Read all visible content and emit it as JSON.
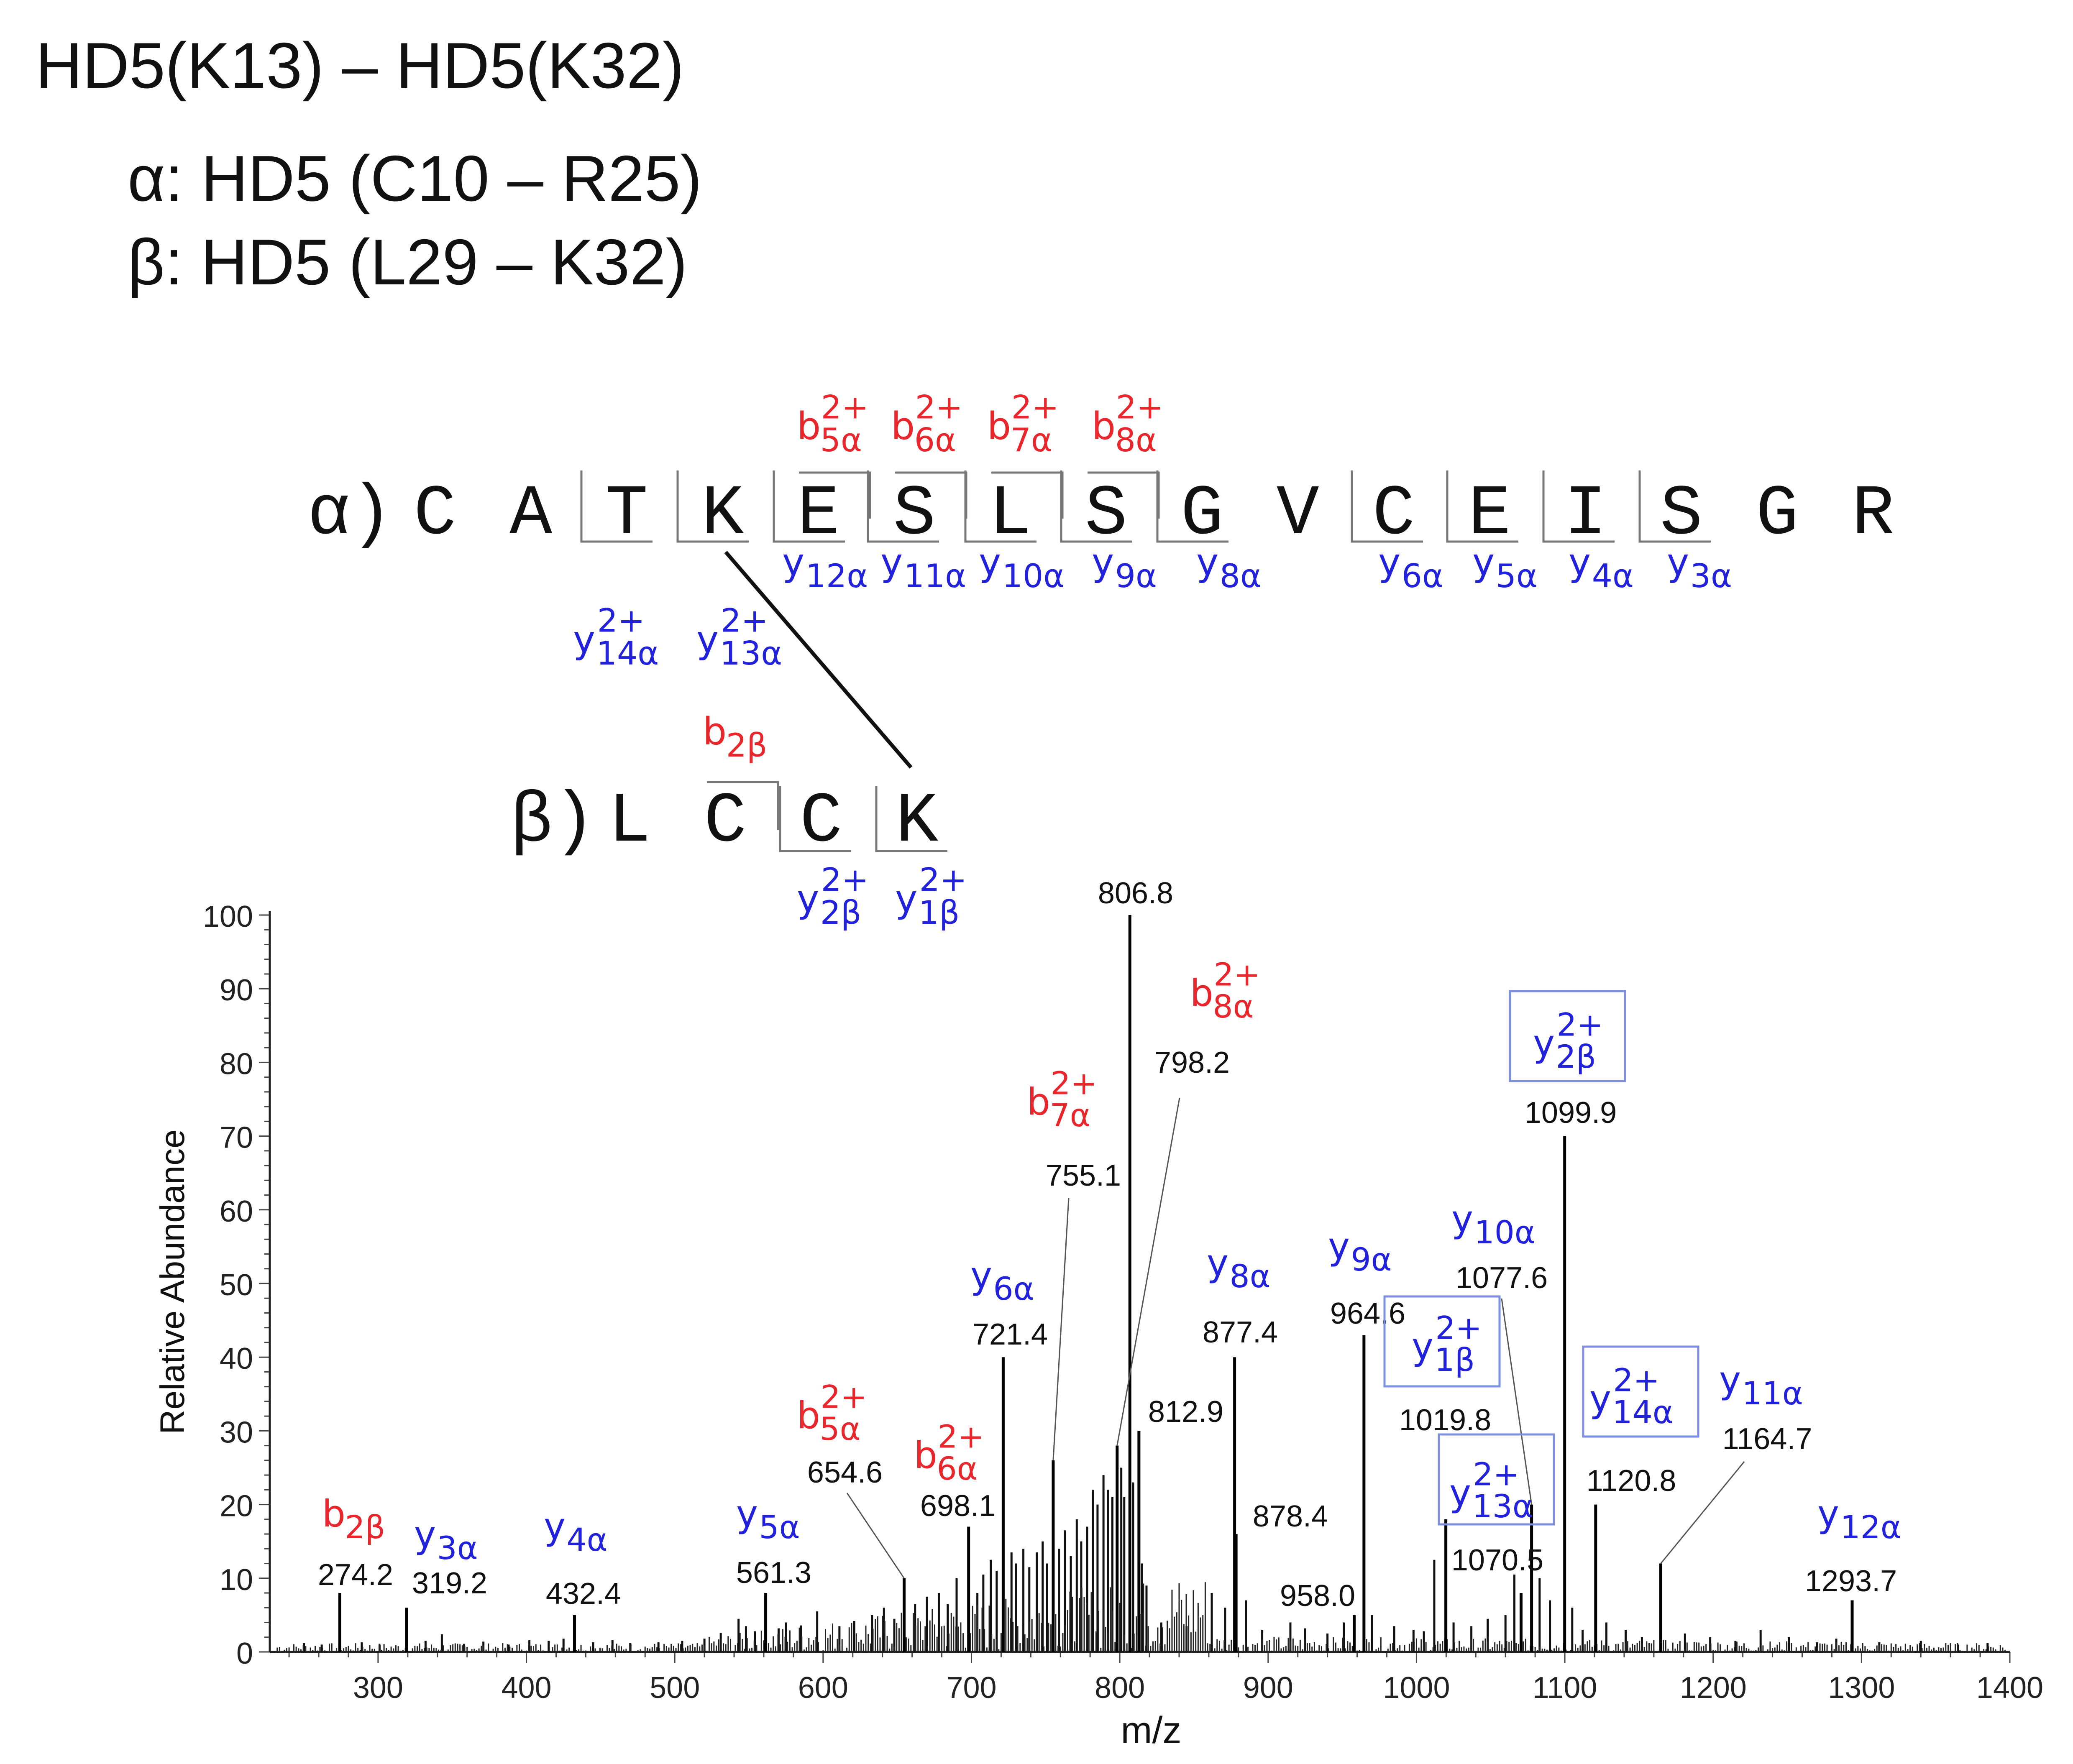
{
  "header": {
    "title": "HD5(K13) – HD5(K32)",
    "alpha_line": "α: HD5 (C10 – R25)",
    "beta_line": "β: HD5 (L29 – K32)"
  },
  "sequence_map": {
    "alpha_prefix": "α)",
    "alpha_residues": [
      "C",
      "A",
      "T",
      "K",
      "E",
      "S",
      "L",
      "S",
      "G",
      "V",
      "C",
      "E",
      "I",
      "S",
      "G",
      "R"
    ],
    "beta_prefix": "β)",
    "beta_residues": [
      "L",
      "C",
      "C",
      "K"
    ],
    "alpha_b_ions": [
      {
        "base": "b",
        "sub": "5α",
        "sup": "2+"
      },
      {
        "base": "b",
        "sub": "6α",
        "sup": "2+"
      },
      {
        "base": "b",
        "sub": "7α",
        "sup": "2+"
      },
      {
        "base": "b",
        "sub": "8α",
        "sup": "2+"
      }
    ],
    "alpha_y_ions": [
      {
        "base": "y",
        "sub": "12α",
        "sup": ""
      },
      {
        "base": "y",
        "sub": "11α",
        "sup": ""
      },
      {
        "base": "y",
        "sub": "10α",
        "sup": ""
      },
      {
        "base": "y",
        "sub": "9α",
        "sup": ""
      },
      {
        "base": "y",
        "sub": "8α",
        "sup": ""
      },
      {
        "base": "y",
        "sub": "6α",
        "sup": ""
      },
      {
        "base": "y",
        "sub": "5α",
        "sup": ""
      },
      {
        "base": "y",
        "sub": "4α",
        "sup": ""
      },
      {
        "base": "y",
        "sub": "3α",
        "sup": ""
      }
    ],
    "crosslink_y_ions": [
      {
        "base": "y",
        "sub": "14α",
        "sup": "2+"
      },
      {
        "base": "y",
        "sub": "13α",
        "sup": "2+"
      }
    ],
    "beta_b_ions": [
      {
        "base": "b",
        "sub": "2β",
        "sup": ""
      }
    ],
    "beta_y_ions": [
      {
        "base": "y",
        "sub": "2β",
        "sup": "2+"
      },
      {
        "base": "y",
        "sub": "1β",
        "sup": "2+"
      }
    ]
  },
  "colors": {
    "b_ion": "#e8262b",
    "y_ion": "#2222dd",
    "text": "#111111",
    "axis": "#222222",
    "box": "#7f8fe0"
  },
  "chart_data": {
    "type": "bar",
    "title": "",
    "xlabel": "m/z",
    "ylabel": "Relative Abundance",
    "xlim": [
      227,
      1400
    ],
    "ylim": [
      0,
      100
    ],
    "xticks": [
      300,
      400,
      500,
      600,
      700,
      800,
      900,
      1000,
      1100,
      1200,
      1300,
      1400
    ],
    "yticks": [
      0,
      10,
      20,
      30,
      40,
      50,
      60,
      70,
      80,
      90,
      100
    ],
    "grid": false,
    "labeled_peaks": [
      {
        "mz": 274.2,
        "intensity": 8,
        "label": "274.2",
        "ion": {
          "base": "b",
          "sub": "2β",
          "sup": "",
          "color": "b"
        }
      },
      {
        "mz": 319.2,
        "intensity": 6,
        "label": "319.2",
        "ion": {
          "base": "y",
          "sub": "3α",
          "sup": "",
          "color": "y"
        }
      },
      {
        "mz": 432.4,
        "intensity": 5,
        "label": "432.4",
        "ion": {
          "base": "y",
          "sub": "4α",
          "sup": "",
          "color": "y"
        }
      },
      {
        "mz": 561.3,
        "intensity": 8,
        "label": "561.3",
        "ion": {
          "base": "y",
          "sub": "5α",
          "sup": "",
          "color": "y"
        }
      },
      {
        "mz": 654.6,
        "intensity": 10,
        "label": "654.6",
        "ion": {
          "base": "b",
          "sub": "5α",
          "sup": "2+",
          "color": "b"
        }
      },
      {
        "mz": 698.1,
        "intensity": 17,
        "label": "698.1",
        "ion": {
          "base": "b",
          "sub": "6α",
          "sup": "2+",
          "color": "b"
        }
      },
      {
        "mz": 721.4,
        "intensity": 40,
        "label": "721.4",
        "ion": {
          "base": "y",
          "sub": "6α",
          "sup": "",
          "color": "y"
        }
      },
      {
        "mz": 755.1,
        "intensity": 26,
        "label": "755.1",
        "ion": {
          "base": "b",
          "sub": "7α",
          "sup": "2+",
          "color": "b"
        }
      },
      {
        "mz": 798.2,
        "intensity": 28,
        "label": "798.2",
        "ion": {
          "base": "b",
          "sub": "8α",
          "sup": "2+",
          "color": "b"
        }
      },
      {
        "mz": 806.8,
        "intensity": 100,
        "label": "806.8",
        "ion": null
      },
      {
        "mz": 812.9,
        "intensity": 30,
        "label": "812.9",
        "ion": null
      },
      {
        "mz": 877.4,
        "intensity": 40,
        "label": "877.4",
        "ion": {
          "base": "y",
          "sub": "8α",
          "sup": "",
          "color": "y"
        }
      },
      {
        "mz": 878.4,
        "intensity": 16,
        "label": "878.4",
        "ion": null
      },
      {
        "mz": 958.0,
        "intensity": 5,
        "label": "958.0",
        "ion": null
      },
      {
        "mz": 964.6,
        "intensity": 43,
        "label": "964.6",
        "ion": {
          "base": "y",
          "sub": "9α",
          "sup": "",
          "color": "y"
        }
      },
      {
        "mz": 1019.8,
        "intensity": 18,
        "label": "1019.8",
        "ion": {
          "base": "y",
          "sub": "1β",
          "sup": "2+",
          "color": "y",
          "boxed": true
        }
      },
      {
        "mz": 1070.5,
        "intensity": 8,
        "label": "1070.5",
        "ion": {
          "base": "y",
          "sub": "13α",
          "sup": "2+",
          "color": "y",
          "boxed": true
        }
      },
      {
        "mz": 1077.6,
        "intensity": 20,
        "label": "1077.6",
        "ion": {
          "base": "y",
          "sub": "10α",
          "sup": "",
          "color": "y"
        }
      },
      {
        "mz": 1099.9,
        "intensity": 70,
        "label": "1099.9",
        "ion": {
          "base": "y",
          "sub": "2β",
          "sup": "2+",
          "color": "y",
          "boxed": true
        }
      },
      {
        "mz": 1120.8,
        "intensity": 20,
        "label": "1120.8",
        "ion": {
          "base": "y",
          "sub": "14α",
          "sup": "2+",
          "color": "y",
          "boxed": true
        }
      },
      {
        "mz": 1164.7,
        "intensity": 12,
        "label": "1164.7",
        "ion": {
          "base": "y",
          "sub": "11α",
          "sup": "",
          "color": "y"
        }
      },
      {
        "mz": 1293.7,
        "intensity": 7,
        "label": "1293.7",
        "ion": {
          "base": "y",
          "sub": "12α",
          "sup": "",
          "color": "y"
        }
      }
    ],
    "secondary_peaks": [
      {
        "mz": 250,
        "intensity": 1.2
      },
      {
        "mz": 262,
        "intensity": 1.0
      },
      {
        "mz": 289,
        "intensity": 1.3
      },
      {
        "mz": 301,
        "intensity": 1.0
      },
      {
        "mz": 332,
        "intensity": 1.5
      },
      {
        "mz": 343,
        "intensity": 2.4
      },
      {
        "mz": 358,
        "intensity": 1.1
      },
      {
        "mz": 371,
        "intensity": 1.4
      },
      {
        "mz": 388,
        "intensity": 1.0
      },
      {
        "mz": 402,
        "intensity": 1.6
      },
      {
        "mz": 415,
        "intensity": 1.5
      },
      {
        "mz": 425,
        "intensity": 1.8
      },
      {
        "mz": 445,
        "intensity": 1.3
      },
      {
        "mz": 458,
        "intensity": 1.6
      },
      {
        "mz": 470,
        "intensity": 1.2
      },
      {
        "mz": 489,
        "intensity": 1.3
      },
      {
        "mz": 505,
        "intensity": 1.5
      },
      {
        "mz": 520,
        "intensity": 1.8
      },
      {
        "mz": 531,
        "intensity": 2.6
      },
      {
        "mz": 543,
        "intensity": 4.5
      },
      {
        "mz": 548,
        "intensity": 3.5
      },
      {
        "mz": 554,
        "intensity": 2.8
      },
      {
        "mz": 570,
        "intensity": 3.2
      },
      {
        "mz": 575,
        "intensity": 4.0
      },
      {
        "mz": 585,
        "intensity": 3.6
      },
      {
        "mz": 596,
        "intensity": 5.5
      },
      {
        "mz": 611,
        "intensity": 3.5
      },
      {
        "mz": 621,
        "intensity": 4.2
      },
      {
        "mz": 633,
        "intensity": 5.0
      },
      {
        "mz": 641,
        "intensity": 6.0
      },
      {
        "mz": 648,
        "intensity": 4.5
      },
      {
        "mz": 662,
        "intensity": 6.5
      },
      {
        "mz": 670,
        "intensity": 7.5
      },
      {
        "mz": 678,
        "intensity": 8.0
      },
      {
        "mz": 684,
        "intensity": 6.5
      },
      {
        "mz": 690,
        "intensity": 10.0
      },
      {
        "mz": 704,
        "intensity": 8.0
      },
      {
        "mz": 708,
        "intensity": 10.5
      },
      {
        "mz": 713,
        "intensity": 12.5
      },
      {
        "mz": 717,
        "intensity": 11.0
      },
      {
        "mz": 727,
        "intensity": 13.5
      },
      {
        "mz": 730,
        "intensity": 12.0
      },
      {
        "mz": 735,
        "intensity": 14.0
      },
      {
        "mz": 739,
        "intensity": 11.5
      },
      {
        "mz": 744,
        "intensity": 13.5
      },
      {
        "mz": 748,
        "intensity": 15.0
      },
      {
        "mz": 751,
        "intensity": 12.0
      },
      {
        "mz": 759,
        "intensity": 14.0
      },
      {
        "mz": 763,
        "intensity": 16.5
      },
      {
        "mz": 767,
        "intensity": 13.0
      },
      {
        "mz": 771,
        "intensity": 18.0
      },
      {
        "mz": 774,
        "intensity": 15.0
      },
      {
        "mz": 778,
        "intensity": 17.0
      },
      {
        "mz": 782,
        "intensity": 22.0
      },
      {
        "mz": 785,
        "intensity": 20.0
      },
      {
        "mz": 789,
        "intensity": 24.0
      },
      {
        "mz": 792,
        "intensity": 22.0
      },
      {
        "mz": 795,
        "intensity": 21.0
      },
      {
        "mz": 801,
        "intensity": 25.0
      },
      {
        "mz": 803,
        "intensity": 21.0
      },
      {
        "mz": 809,
        "intensity": 23.0
      },
      {
        "mz": 815,
        "intensity": 12.0
      },
      {
        "mz": 818,
        "intensity": 9.0
      },
      {
        "mz": 828,
        "intensity": 4.0
      },
      {
        "mz": 845,
        "intensity": 3.5
      },
      {
        "mz": 862,
        "intensity": 8.0
      },
      {
        "mz": 871,
        "intensity": 6.0
      },
      {
        "mz": 885,
        "intensity": 7.0
      },
      {
        "mz": 896,
        "intensity": 3.0
      },
      {
        "mz": 915,
        "intensity": 4.0
      },
      {
        "mz": 925,
        "intensity": 3.2
      },
      {
        "mz": 940,
        "intensity": 2.5
      },
      {
        "mz": 951,
        "intensity": 4.0
      },
      {
        "mz": 970,
        "intensity": 5.0
      },
      {
        "mz": 985,
        "intensity": 3.5
      },
      {
        "mz": 998,
        "intensity": 3.0
      },
      {
        "mz": 1005,
        "intensity": 2.8
      },
      {
        "mz": 1012,
        "intensity": 12.5
      },
      {
        "mz": 1025,
        "intensity": 4.0
      },
      {
        "mz": 1037,
        "intensity": 3.5
      },
      {
        "mz": 1048,
        "intensity": 4.5
      },
      {
        "mz": 1060,
        "intensity": 5.0
      },
      {
        "mz": 1066,
        "intensity": 10.5
      },
      {
        "mz": 1083,
        "intensity": 10.0
      },
      {
        "mz": 1090,
        "intensity": 7.0
      },
      {
        "mz": 1105,
        "intensity": 6.0
      },
      {
        "mz": 1112,
        "intensity": 3.0
      },
      {
        "mz": 1128,
        "intensity": 4.0
      },
      {
        "mz": 1141,
        "intensity": 3.0
      },
      {
        "mz": 1152,
        "intensity": 2.0
      },
      {
        "mz": 1181,
        "intensity": 2.5
      },
      {
        "mz": 1198,
        "intensity": 2.0
      },
      {
        "mz": 1215,
        "intensity": 1.5
      },
      {
        "mz": 1232,
        "intensity": 3.0
      },
      {
        "mz": 1251,
        "intensity": 2.0
      },
      {
        "mz": 1270,
        "intensity": 1.3
      },
      {
        "mz": 1283,
        "intensity": 1.8
      },
      {
        "mz": 1312,
        "intensity": 1.3
      },
      {
        "mz": 1340,
        "intensity": 1.5
      },
      {
        "mz": 1365,
        "intensity": 1.0
      },
      {
        "mz": 1385,
        "intensity": 1.2
      }
    ]
  }
}
